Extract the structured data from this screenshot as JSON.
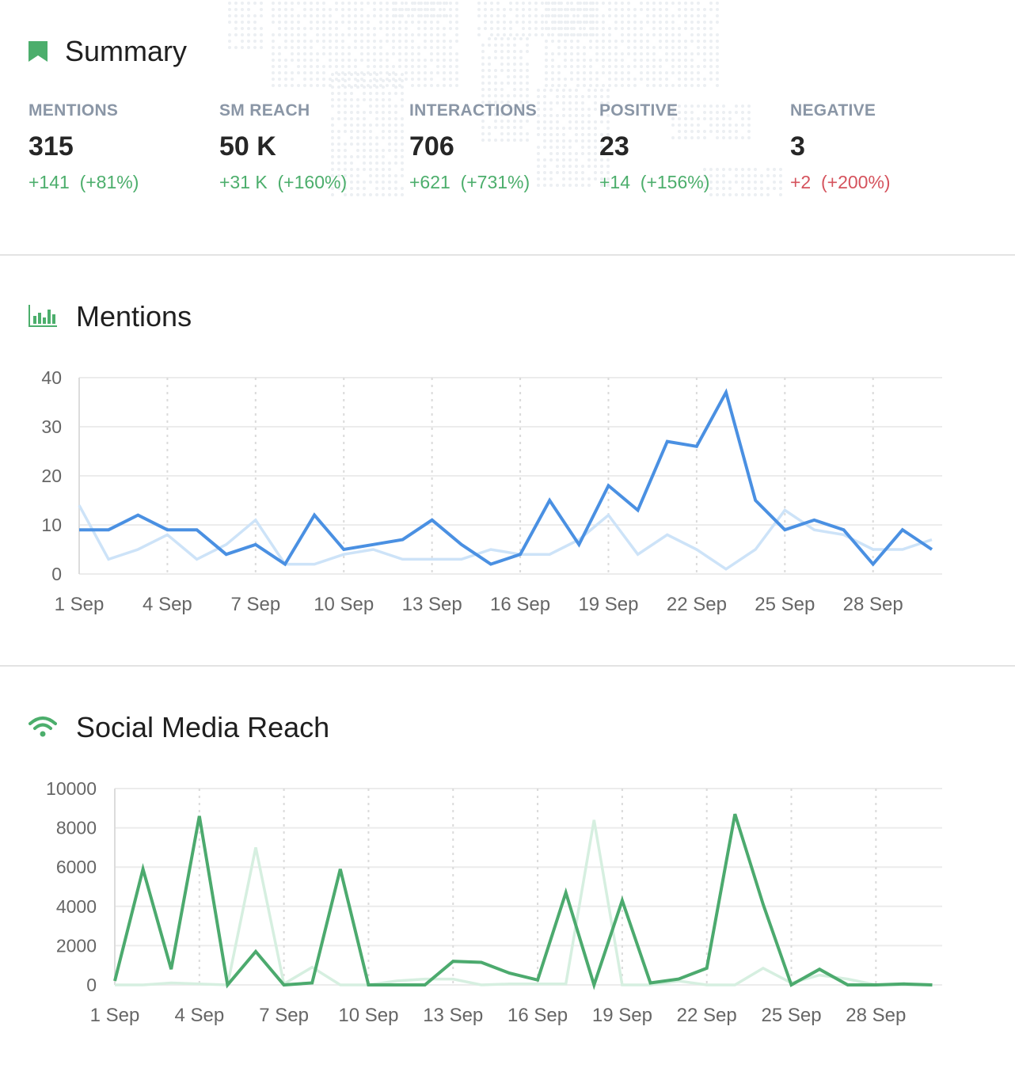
{
  "summary": {
    "title": "Summary",
    "metrics": [
      {
        "label": "MENTIONS",
        "value": "315",
        "change": "+141  (+81%)",
        "trend": "positive"
      },
      {
        "label": "SM REACH",
        "value": "50 K",
        "change": "+31 K  (+160%)",
        "trend": "positive"
      },
      {
        "label": "INTERACTIONS",
        "value": "706",
        "change": "+621  (+731%)",
        "trend": "positive"
      },
      {
        "label": "POSITIVE",
        "value": "23",
        "change": "+14  (+156%)",
        "trend": "positive"
      },
      {
        "label": "NEGATIVE",
        "value": "3",
        "change": "+2  (+200%)",
        "trend": "negative"
      }
    ]
  },
  "colors": {
    "positive": "#4cae6c",
    "negative": "#d5535d",
    "mentions_current": "#4a90e2",
    "mentions_previous": "#cde3f8",
    "reach_current": "#4caa6e",
    "reach_previous": "#d6efe0",
    "accent_icon": "#4cae6c"
  },
  "mentions": {
    "title": "Mentions"
  },
  "reach": {
    "title": "Social Media Reach"
  },
  "chart_data": [
    {
      "type": "line",
      "id": "mentions",
      "title": "Mentions",
      "x": [
        "1 Sep",
        "2 Sep",
        "3 Sep",
        "4 Sep",
        "5 Sep",
        "6 Sep",
        "7 Sep",
        "8 Sep",
        "9 Sep",
        "10 Sep",
        "11 Sep",
        "12 Sep",
        "13 Sep",
        "14 Sep",
        "15 Sep",
        "16 Sep",
        "17 Sep",
        "18 Sep",
        "19 Sep",
        "20 Sep",
        "21 Sep",
        "22 Sep",
        "23 Sep",
        "24 Sep",
        "25 Sep",
        "26 Sep",
        "27 Sep",
        "28 Sep",
        "29 Sep",
        "30 Sep"
      ],
      "tick_labels": [
        "1 Sep",
        "4 Sep",
        "7 Sep",
        "10 Sep",
        "13 Sep",
        "16 Sep",
        "19 Sep",
        "22 Sep",
        "25 Sep",
        "28 Sep"
      ],
      "y_ticks": [
        0,
        10,
        20,
        30,
        40
      ],
      "ylim": [
        0,
        40
      ],
      "grid": true,
      "series": [
        {
          "role": "previous",
          "values": [
            14,
            3,
            5,
            8,
            3,
            6,
            11,
            2,
            2,
            4,
            5,
            3,
            3,
            3,
            5,
            4,
            4,
            7,
            12,
            4,
            8,
            5,
            1,
            5,
            13,
            9,
            8,
            5,
            5,
            7
          ]
        },
        {
          "role": "current",
          "values": [
            9,
            9,
            12,
            9,
            9,
            4,
            6,
            2,
            12,
            5,
            6,
            7,
            11,
            6,
            2,
            4,
            15,
            6,
            18,
            13,
            27,
            26,
            37,
            15,
            9,
            11,
            9,
            2,
            9,
            5
          ]
        }
      ]
    },
    {
      "type": "line",
      "id": "reach",
      "title": "Social Media Reach",
      "x": [
        "1 Sep",
        "2 Sep",
        "3 Sep",
        "4 Sep",
        "5 Sep",
        "6 Sep",
        "7 Sep",
        "8 Sep",
        "9 Sep",
        "10 Sep",
        "11 Sep",
        "12 Sep",
        "13 Sep",
        "14 Sep",
        "15 Sep",
        "16 Sep",
        "17 Sep",
        "18 Sep",
        "19 Sep",
        "20 Sep",
        "21 Sep",
        "22 Sep",
        "23 Sep",
        "24 Sep",
        "25 Sep",
        "26 Sep",
        "27 Sep",
        "28 Sep",
        "29 Sep",
        "30 Sep"
      ],
      "tick_labels": [
        "1 Sep",
        "4 Sep",
        "7 Sep",
        "10 Sep",
        "13 Sep",
        "16 Sep",
        "19 Sep",
        "22 Sep",
        "25 Sep",
        "28 Sep"
      ],
      "y_ticks": [
        0,
        2000,
        4000,
        6000,
        8000,
        10000
      ],
      "ylim": [
        0,
        10000
      ],
      "grid": true,
      "series": [
        {
          "role": "previous",
          "values": [
            0,
            0,
            100,
            50,
            0,
            7000,
            50,
            900,
            0,
            0,
            200,
            300,
            300,
            0,
            50,
            50,
            50,
            8400,
            0,
            0,
            200,
            0,
            0,
            850,
            100,
            500,
            300,
            0,
            0,
            0
          ]
        },
        {
          "role": "current",
          "values": [
            200,
            5900,
            800,
            8600,
            0,
            1700,
            0,
            100,
            5900,
            0,
            0,
            0,
            1200,
            1150,
            600,
            250,
            4700,
            0,
            4300,
            100,
            300,
            850,
            8700,
            4100,
            0,
            800,
            0,
            0,
            50,
            0
          ]
        }
      ]
    }
  ]
}
